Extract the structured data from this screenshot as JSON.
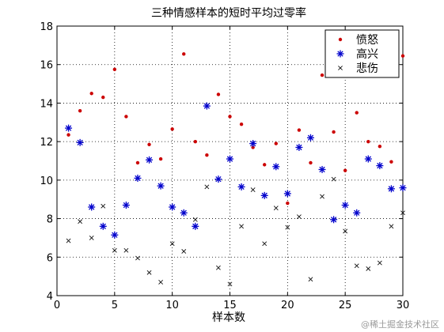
{
  "chart_data": {
    "type": "scatter",
    "title": "三种情感样本的短时平均过零率",
    "xlabel": "样本数",
    "ylabel": "",
    "xlim": [
      0,
      30
    ],
    "ylim": [
      4,
      18
    ],
    "xticks": [
      0,
      5,
      10,
      15,
      20,
      25,
      30
    ],
    "yticks": [
      4,
      6,
      8,
      10,
      12,
      14,
      16,
      18
    ],
    "grid": true,
    "legend_position": "top-right",
    "series": [
      {
        "name": "愤怒",
        "marker": "dot",
        "color": "#cc0000",
        "x": [
          1,
          2,
          3,
          4,
          5,
          6,
          7,
          8,
          9,
          10,
          11,
          12,
          13,
          14,
          15,
          16,
          17,
          18,
          19,
          20,
          21,
          22,
          23,
          24,
          25,
          26,
          27,
          28,
          29,
          30
        ],
        "y": [
          12.35,
          13.6,
          14.5,
          14.3,
          15.75,
          13.3,
          10.9,
          11.85,
          11.1,
          12.65,
          16.55,
          12.0,
          11.3,
          14.45,
          13.3,
          12.9,
          11.7,
          10.8,
          11.9,
          8.8,
          12.6,
          10.9,
          15.45,
          12.5,
          10.5,
          13.5,
          12.0,
          11.75,
          10.95,
          16.45
        ]
      },
      {
        "name": "高兴",
        "marker": "star",
        "color": "#0000cc",
        "x": [
          1,
          2,
          3,
          4,
          5,
          6,
          7,
          8,
          9,
          10,
          11,
          12,
          13,
          14,
          15,
          16,
          17,
          18,
          19,
          20,
          21,
          22,
          23,
          24,
          25,
          26,
          27,
          28,
          29,
          30
        ],
        "y": [
          12.7,
          11.95,
          8.6,
          7.6,
          7.15,
          8.7,
          10.1,
          11.05,
          9.7,
          8.6,
          8.3,
          7.6,
          13.85,
          10.05,
          11.1,
          9.65,
          11.9,
          9.2,
          10.7,
          9.3,
          11.7,
          12.2,
          10.55,
          7.95,
          8.7,
          8.3,
          11.1,
          10.75,
          9.55,
          9.6
        ]
      },
      {
        "name": "悲伤",
        "marker": "x",
        "color": "#111111",
        "x": [
          1,
          2,
          3,
          4,
          5,
          6,
          7,
          8,
          9,
          10,
          11,
          12,
          13,
          14,
          15,
          16,
          17,
          18,
          19,
          20,
          21,
          22,
          23,
          24,
          25,
          26,
          27,
          28,
          29,
          30
        ],
        "y": [
          6.85,
          7.85,
          7.0,
          8.65,
          6.35,
          6.35,
          5.95,
          5.2,
          4.7,
          6.7,
          6.3,
          7.95,
          9.65,
          5.45,
          4.6,
          7.6,
          9.5,
          6.7,
          8.55,
          7.55,
          8.1,
          4.85,
          9.15,
          10.05,
          7.35,
          5.55,
          5.4,
          5.7,
          7.6,
          8.3
        ]
      }
    ]
  },
  "watermark": "@稀土掘金技术社区"
}
